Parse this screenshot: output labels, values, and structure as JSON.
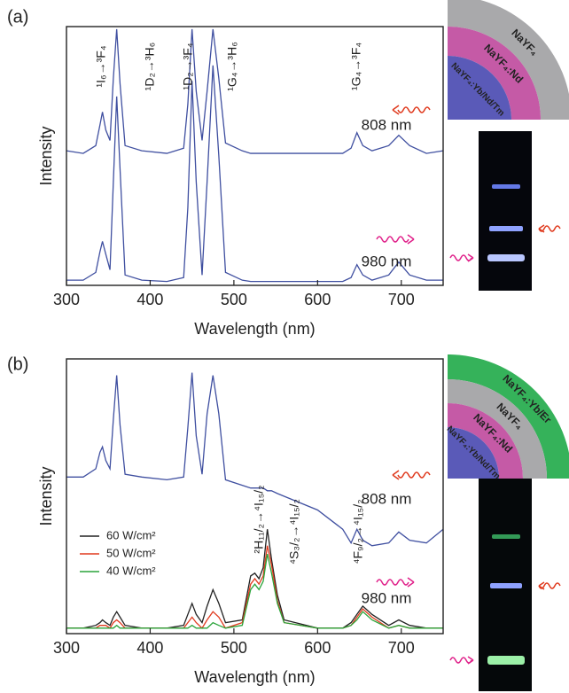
{
  "chart_data": [
    {
      "type": "line",
      "panel_label": "(a)",
      "x_label": "Wavelength (nm)",
      "y_label": "Intensity",
      "x": [
        300,
        320,
        335,
        340,
        343,
        347,
        352,
        356,
        360,
        364,
        370,
        390,
        420,
        440,
        445,
        450,
        455,
        462,
        468,
        475,
        482,
        490,
        510,
        520,
        525,
        530,
        535,
        540,
        545,
        552,
        560,
        600,
        630,
        640,
        647,
        654,
        665,
        685,
        697,
        710,
        730,
        750
      ],
      "xlim": [
        300,
        750
      ],
      "xticks": [
        300,
        400,
        500,
        600,
        700
      ],
      "ylim": [
        0,
        100
      ],
      "series": [
        {
          "color": "#3f4fa0",
          "values": [
            52,
            51,
            54,
            62,
            67,
            60,
            56,
            80,
            99,
            78,
            54,
            52,
            51,
            53,
            70,
            99,
            75,
            56,
            75,
            99,
            80,
            55,
            52,
            51,
            51,
            51,
            51,
            51,
            51,
            51,
            51,
            51,
            51,
            53,
            59,
            54,
            52,
            54,
            58,
            54,
            51,
            52
          ]
        },
        {
          "color": "#3f4fa0",
          "values": [
            2,
            2,
            5,
            13,
            17,
            12,
            6,
            40,
            73,
            45,
            4,
            2,
            1.5,
            3,
            30,
            79,
            40,
            4,
            40,
            85,
            50,
            5,
            2,
            1.5,
            1.5,
            1.5,
            1.5,
            1.5,
            1.5,
            1.5,
            1.5,
            1.5,
            1.5,
            3,
            8,
            4,
            2,
            4,
            9,
            4,
            2,
            2
          ]
        }
      ],
      "annotations": [
        "¹I₆→³F₄",
        "¹D₂→³H₆",
        "¹D₂→³F₄",
        "¹G₄→³H₆",
        "¹G₄→³F₄",
        "808 nm",
        "980 nm"
      ],
      "shell_labels": [
        "NaYF₄",
        "NaYF₄:Nd",
        "NaYF₄:Yb/Nd/Tm"
      ]
    },
    {
      "type": "line",
      "panel_label": "(b)",
      "x_label": "Wavelength (nm)",
      "y_label": "Intensity",
      "x": [
        300,
        320,
        335,
        340,
        343,
        347,
        352,
        356,
        360,
        364,
        370,
        390,
        420,
        440,
        445,
        450,
        455,
        462,
        468,
        475,
        482,
        490,
        510,
        520,
        525,
        530,
        535,
        540,
        545,
        552,
        560,
        600,
        630,
        640,
        647,
        654,
        665,
        685,
        697,
        710,
        730,
        750
      ],
      "xlim": [
        300,
        750
      ],
      "xticks": [
        300,
        400,
        500,
        600,
        700
      ],
      "ylim": [
        0,
        100
      ],
      "legend": "lower left",
      "series": [
        {
          "color": "#3f4fa0",
          "values": [
            57,
            57,
            60,
            66,
            68,
            63,
            60,
            78,
            94,
            76,
            58,
            57,
            56,
            57,
            75,
            95,
            72,
            58,
            80,
            94,
            80,
            56,
            54,
            53,
            53,
            53,
            53,
            52,
            52,
            51,
            50,
            45,
            38,
            33,
            38,
            34,
            32,
            33,
            37,
            34,
            33,
            38
          ]
        },
        {
          "name": "60 W/cm²",
          "color": "#222222",
          "values": [
            2,
            2,
            3,
            4,
            5,
            4,
            3,
            6,
            8,
            6,
            3,
            2,
            2,
            3,
            7,
            11,
            7,
            4,
            10,
            16,
            11,
            4,
            5,
            21,
            22,
            20,
            24,
            38,
            27,
            14,
            5,
            2,
            2,
            4,
            7,
            10,
            7,
            3,
            5,
            3,
            2,
            2
          ]
        },
        {
          "name": "50 W/cm²",
          "color": "#e03a1e",
          "values": [
            2,
            2,
            2,
            3,
            3,
            3,
            2,
            4,
            5,
            4,
            2,
            2,
            2,
            2,
            4,
            6,
            4,
            2,
            5,
            8,
            6,
            2,
            4,
            18,
            20,
            18,
            21,
            32,
            25,
            12,
            4,
            2,
            2,
            3,
            6,
            9,
            6,
            2,
            3,
            2,
            2,
            2
          ]
        },
        {
          "name": "40 W/cm²",
          "color": "#2aa43a",
          "values": [
            2,
            2,
            2,
            2,
            2,
            2,
            2,
            2,
            3,
            2,
            2,
            2,
            2,
            2,
            2,
            3,
            2,
            2,
            2,
            4,
            3,
            2,
            3,
            16,
            18,
            16,
            19,
            29,
            22,
            11,
            4,
            2,
            2,
            3,
            5,
            8,
            5,
            2,
            3,
            2,
            2,
            2
          ]
        }
      ],
      "annotations": [
        "²H₁₁/₂→⁴I₁₅/₂",
        "⁴S₃/₂→⁴I₁₅/₂",
        "⁴F₉/₂→⁴I₁₅/₂",
        "808 nm",
        "980 nm"
      ],
      "shell_labels": [
        "NaYF₄:Yb/Er",
        "NaYF₄",
        "NaYF₄:Nd",
        "NaYF₄:Yb/Nd/Tm"
      ]
    }
  ]
}
